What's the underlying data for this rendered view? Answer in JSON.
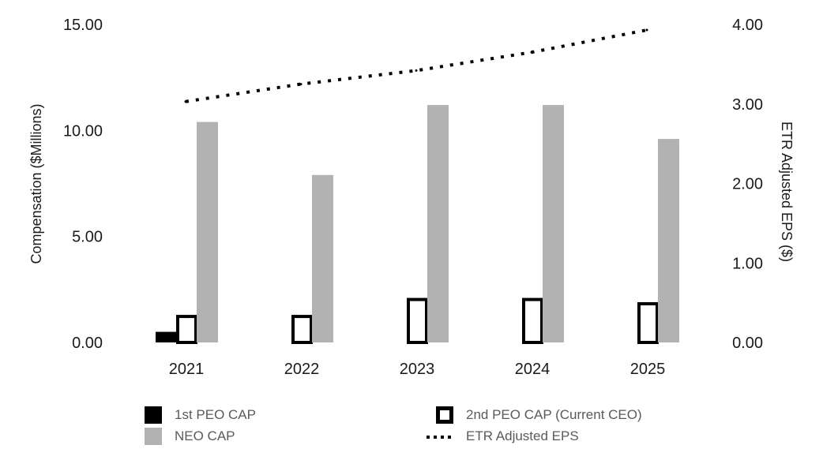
{
  "chart_data": {
    "type": "bar",
    "categories": [
      "2021",
      "2022",
      "2023",
      "2024",
      "2025"
    ],
    "series": [
      {
        "name": "1st PEO CAP",
        "axis": "left",
        "style": "solid",
        "color": "#000000",
        "values": [
          0.5,
          null,
          null,
          null,
          null
        ]
      },
      {
        "name": "2nd PEO CAP (Current CEO)",
        "axis": "left",
        "style": "outline",
        "color": "#000000",
        "values": [
          1.3,
          1.3,
          2.1,
          2.1,
          1.9
        ]
      },
      {
        "name": "NEO CAP",
        "axis": "left",
        "style": "solid",
        "color": "#b2b2b2",
        "values": [
          10.4,
          7.9,
          11.2,
          11.2,
          9.6
        ]
      },
      {
        "name": "ETR Adjusted EPS",
        "axis": "right",
        "type": "line",
        "style": "dotted",
        "color": "#000000",
        "values": [
          3.03,
          3.25,
          3.42,
          3.65,
          3.93
        ]
      }
    ],
    "ylabel": "Compensation ($Millions)",
    "ylabel_right": "ETR Adjusted EPS ($)",
    "ylim": [
      0,
      15
    ],
    "ylim_right": [
      0,
      4
    ],
    "yticks": [
      "0.00",
      "5.00",
      "10.00",
      "15.00"
    ],
    "yticks_right": [
      "0.00",
      "1.00",
      "2.00",
      "3.00",
      "4.00"
    ],
    "grid": false,
    "legend_placement": "bottom"
  },
  "legend": {
    "items": [
      {
        "label": "1st PEO CAP",
        "icon": "solid-black-square"
      },
      {
        "label": "2nd PEO CAP (Current CEO)",
        "icon": "outlined-square"
      },
      {
        "label": "NEO CAP",
        "icon": "solid-gray-square"
      },
      {
        "label": "ETR Adjusted EPS",
        "icon": "dotted-line"
      }
    ]
  }
}
